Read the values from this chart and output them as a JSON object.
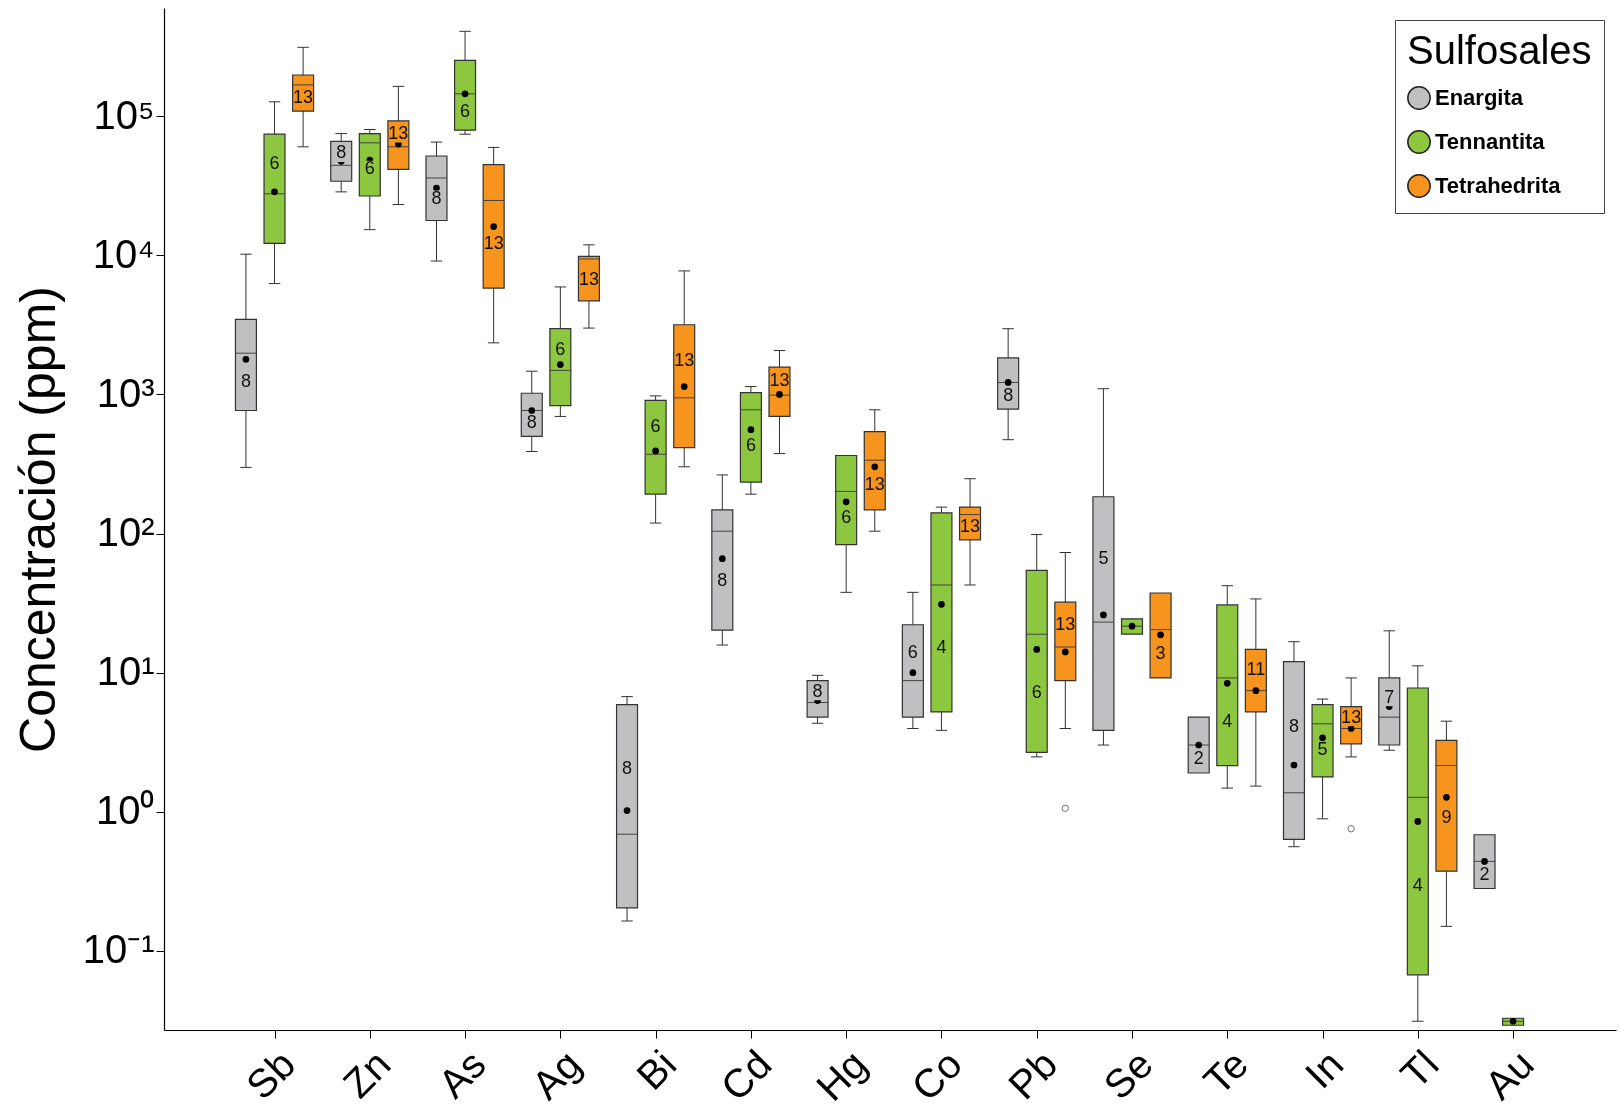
{
  "chart_data": {
    "type": "box",
    "ylabel": "Concentración (ppm)",
    "legend_title": "Sulfosales",
    "legend": "top right",
    "log": true,
    "categories": [
      "Sb",
      "Zn",
      "As",
      "Ag",
      "Bi",
      "Cd",
      "Hg",
      "Co",
      "Pb",
      "Se",
      "Te",
      "In",
      "Tl",
      "Au"
    ],
    "ylim": [
      0.027,
      600000
    ],
    "yticks": [
      {
        "value": 0.1,
        "label": "10⁻¹"
      },
      {
        "value": 1,
        "label": "10⁰"
      },
      {
        "value": 10,
        "label": "10¹"
      },
      {
        "value": 100,
        "label": "10²"
      },
      {
        "value": 1000,
        "label": "10³"
      },
      {
        "value": 10000,
        "label": "10⁴"
      },
      {
        "value": 100000,
        "label": "10⁵"
      }
    ],
    "series": [
      {
        "name": "Enargita",
        "color": "#c0c0c2",
        "value_labels": [
          "8",
          "8",
          "8",
          "8",
          "8",
          "8",
          "8",
          "6",
          "8",
          "5",
          "2",
          "8",
          "7",
          "2"
        ],
        "boxes": [
          {
            "low": 299,
            "q1": 767,
            "median": 1980,
            "q3": 3470,
            "high": 10200,
            "mean": 1790
          },
          {
            "low": 28600,
            "q1": 34100,
            "median": 44400,
            "q3": 65900,
            "high": 75100,
            "mean": 47400
          },
          {
            "low": 9100,
            "q1": 17800,
            "median": 36000,
            "q3": 51800,
            "high": 65200,
            "mean": 30500
          },
          {
            "low": 389,
            "q1": 500,
            "median": 767,
            "q3": 1020,
            "high": 1470,
            "mean": 767
          },
          {
            "low": 0.164,
            "q1": 0.204,
            "median": 0.69,
            "q3": 5.9,
            "high": 6.73,
            "mean": 1.02
          },
          {
            "low": 15.8,
            "q1": 20.2,
            "median": 104,
            "q3": 148,
            "high": 264,
            "mean": 66
          },
          {
            "low": 4.33,
            "q1": 4.79,
            "median": 6.1,
            "q3": 8.77,
            "high": 9.57,
            "mean": 6.3
          },
          {
            "low": 3.97,
            "q1": 4.79,
            "median": 8.77,
            "q3": 22.1,
            "high": 37.8,
            "mean": 10
          },
          {
            "low": 473,
            "q1": 785,
            "median": 1220,
            "q3": 1830,
            "high": 2970,
            "mean": 1220
          },
          {
            "low": 3.02,
            "q1": 3.85,
            "median": 23.1,
            "q3": 184,
            "high": 1100,
            "mean": 26
          },
          {
            "low": 1.9,
            "q1": 1.9,
            "median": 3.02,
            "q3": 4.79,
            "high": 4.79,
            "mean": 3.02
          },
          {
            "low": 0.561,
            "q1": 0.634,
            "median": 1.37,
            "q3": 12,
            "high": 16.7,
            "mean": 2.17
          },
          {
            "low": 2.77,
            "q1": 3.02,
            "median": 4.79,
            "q3": 9.17,
            "high": 20,
            "mean": 5.71
          },
          {
            "low": 0.281,
            "q1": 0.281,
            "median": 0.44,
            "q3": 0.684,
            "high": 0.684,
            "mean": 0.44
          }
        ]
      },
      {
        "name": "Tennantita",
        "color": "#8dc63f",
        "value_labels": [
          "6",
          "6",
          "6",
          "6",
          "6",
          "6",
          "6",
          "4",
          "6",
          null,
          "4",
          "5",
          "4",
          null
        ],
        "boxes": [
          {
            "low": 6270,
            "q1": 12200,
            "median": 27700,
            "q3": 74300,
            "high": 127000,
            "mean": 28600
          },
          {
            "low": 15300,
            "q1": 26700,
            "median": 64400,
            "q3": 75100,
            "high": 80300,
            "mean": 48400
          },
          {
            "low": 74300,
            "q1": 79400,
            "median": 145000,
            "q3": 252000,
            "high": 408000,
            "mean": 145000
          },
          {
            "low": 695,
            "q1": 830,
            "median": 1490,
            "q3": 2970,
            "high": 5930,
            "mean": 1640
          },
          {
            "low": 119,
            "q1": 192,
            "median": 372,
            "q3": 906,
            "high": 977,
            "mean": 393
          },
          {
            "low": 192,
            "q1": 234,
            "median": 776,
            "q3": 1030,
            "high": 1140,
            "mean": 558
          },
          {
            "low": 37.8,
            "q1": 83.4,
            "median": 201,
            "q3": 364,
            "high": 364,
            "mean": 169
          },
          {
            "low": 3.85,
            "q1": 5.22,
            "median": 42.7,
            "q3": 141,
            "high": 155,
            "mean": 31
          },
          {
            "low": 2.48,
            "q1": 2.67,
            "median": 18.9,
            "q3": 54.3,
            "high": 98.4,
            "mean": 14.7
          },
          {
            "low": 18.9,
            "q1": 18.9,
            "median": 21.6,
            "q3": 24.4,
            "high": 24.4,
            "mean": 21.6
          },
          {
            "low": 1.48,
            "q1": 2.15,
            "median": 9.17,
            "q3": 30.7,
            "high": 42.2,
            "mean": 8.39
          },
          {
            "low": 0.89,
            "q1": 1.78,
            "median": 4.29,
            "q3": 5.9,
            "high": 6.46,
            "mean": 3.4
          },
          {
            "low": 0.0312,
            "q1": 0.0673,
            "median": 1.27,
            "q3": 7.76,
            "high": 11.2,
            "mean": 0.853
          },
          {
            "low": 0.0292,
            "q1": 0.0292,
            "median": 0.0312,
            "q3": 0.0328,
            "high": 0.0328,
            "mean": 0.0312
          }
        ]
      },
      {
        "name": "Tetrahedrita",
        "color": "#f7941d",
        "value_labels": [
          "13",
          "13",
          "13",
          "13",
          "13",
          "13",
          "13",
          "13",
          "13",
          "3",
          "11",
          "13",
          "9",
          null
        ],
        "boxes": [
          {
            "low": 60300,
            "q1": 109000,
            "median": 168000,
            "q3": 198000,
            "high": 313000,
            "mean": 147000
          },
          {
            "low": 23200,
            "q1": 41500,
            "median": 60300,
            "q3": 92600,
            "high": 164000,
            "mean": 63100
          },
          {
            "low": 2350,
            "q1": 5810,
            "median": 24800,
            "q3": 44900,
            "high": 59700,
            "mean": 16100
          },
          {
            "low": 3000,
            "q1": 4710,
            "median": 9420,
            "q3": 9840,
            "high": 11900,
            "mean": 7150
          },
          {
            "low": 302,
            "q1": 415,
            "median": 946,
            "q3": 3170,
            "high": 7730,
            "mean": 1140
          },
          {
            "low": 376,
            "q1": 695,
            "median": 989,
            "q3": 1570,
            "high": 2070,
            "mean": 1000
          },
          {
            "low": 104,
            "q1": 148,
            "median": 337,
            "q3": 541,
            "high": 776,
            "mean": 302
          },
          {
            "low": 42.7,
            "q1": 90.2,
            "median": 137,
            "q3": 155,
            "high": 248,
            "mean": 112
          },
          {
            "low": 3.97,
            "q1": 8.77,
            "median": 15.3,
            "q3": 32.1,
            "high": 73.1,
            "mean": 14.1,
            "outliers": [
              1.06
            ]
          },
          {
            "low": 9.17,
            "q1": 9.17,
            "median": 20.4,
            "q3": 37.4,
            "high": 37.4,
            "mean": 18.7
          },
          {
            "low": 1.53,
            "q1": 5.22,
            "median": 7.43,
            "q3": 14.7,
            "high": 33.9,
            "mean": 7.43
          },
          {
            "low": 2.48,
            "q1": 3.08,
            "median": 3.97,
            "q3": 5.71,
            "high": 9.17,
            "mean": 3.97,
            "outliers": [
              0.755
            ]
          },
          {
            "low": 0.15,
            "q1": 0.374,
            "median": 2.15,
            "q3": 3.26,
            "high": 4.48,
            "mean": 1.27
          },
          null
        ]
      }
    ]
  }
}
